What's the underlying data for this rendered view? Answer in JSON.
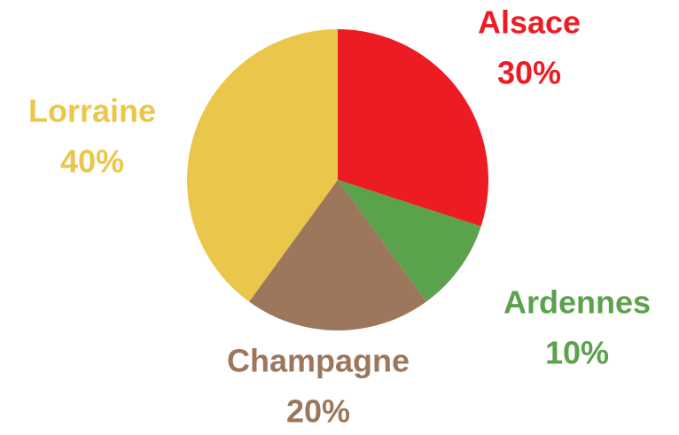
{
  "chart_data": {
    "type": "pie",
    "categories": [
      "Alsace",
      "Ardennes",
      "Champagne",
      "Lorraine"
    ],
    "values": [
      30,
      10,
      20,
      40
    ],
    "value_labels": [
      "30%",
      "10%",
      "20%",
      "40%"
    ],
    "colors": [
      "#ed1c24",
      "#5ba24d",
      "#9c775b",
      "#eac64a"
    ]
  }
}
